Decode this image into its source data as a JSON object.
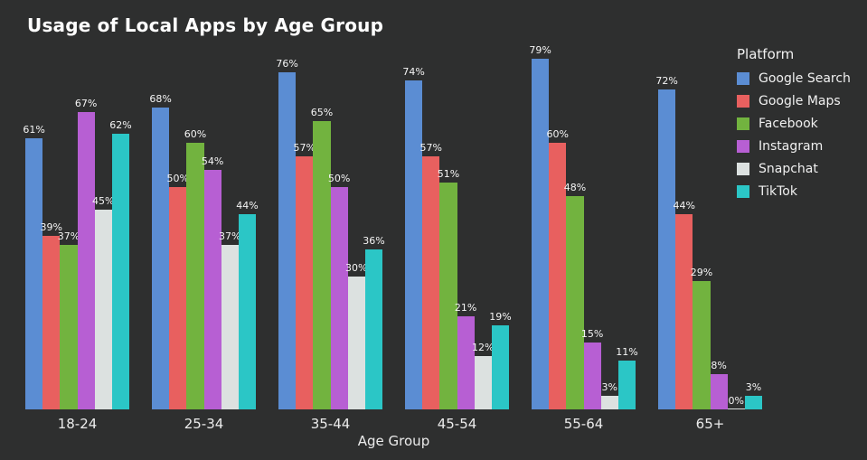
{
  "page": {
    "background_color": "#2e2f2f",
    "text_color": "#f0f0f0"
  },
  "chart_data": {
    "type": "bar",
    "title": "Usage of Local Apps by Age Group",
    "xlabel": "Age Group",
    "legend_title": "Platform",
    "legend_position": "top-right",
    "grid": false,
    "ylim": [
      0,
      80
    ],
    "value_suffix": "%",
    "categories": [
      "18-24",
      "25-34",
      "35-44",
      "45-54",
      "55-64",
      "65+"
    ],
    "series": [
      {
        "name": "Google Search",
        "color": "#5b8dd3",
        "values": [
          61,
          68,
          76,
          74,
          79,
          72
        ]
      },
      {
        "name": "Google Maps",
        "color": "#e8605f",
        "values": [
          39,
          50,
          57,
          57,
          60,
          44
        ]
      },
      {
        "name": "Facebook",
        "color": "#72b33f",
        "values": [
          37,
          60,
          65,
          51,
          48,
          29
        ]
      },
      {
        "name": "Instagram",
        "color": "#b75fd3",
        "values": [
          67,
          54,
          50,
          21,
          15,
          8
        ]
      },
      {
        "name": "Snapchat",
        "color": "#dce1e0",
        "values": [
          45,
          37,
          30,
          12,
          3,
          0
        ]
      },
      {
        "name": "TikTok",
        "color": "#2bc6c6",
        "values": [
          62,
          44,
          36,
          19,
          11,
          3
        ]
      }
    ]
  }
}
